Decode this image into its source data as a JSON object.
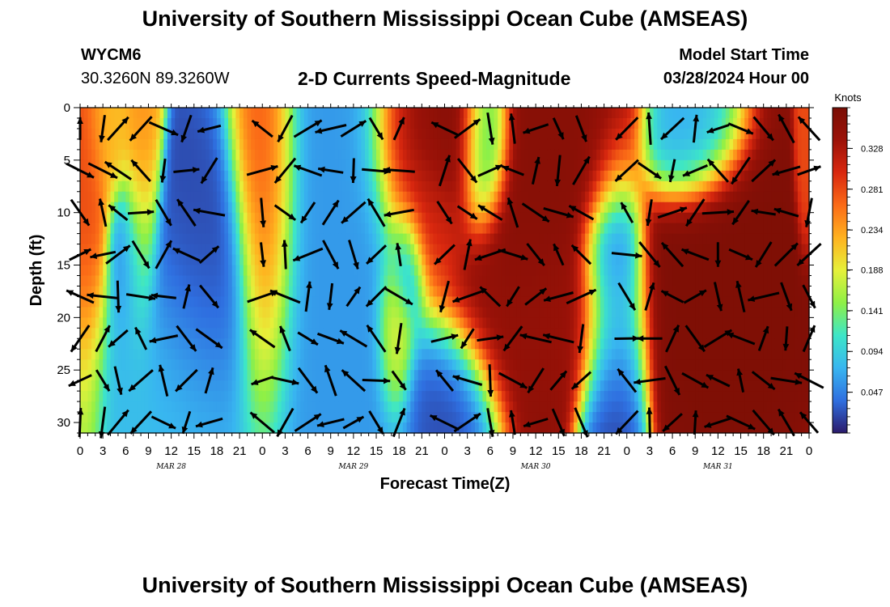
{
  "header": {
    "title": "University of Southern Mississippi Ocean Cube (AMSEAS)",
    "station": "WYCM6",
    "coords": "30.3260N  89.3260W",
    "subtitle": "2-D Currents Speed-Magnitude",
    "start_label": "Model Start Time",
    "start_value": "03/28/2024 Hour 00"
  },
  "footer": {
    "title": "University of Southern Mississippi Ocean Cube (AMSEAS)"
  },
  "colors": {
    "colormap": [
      "#2b1a6b",
      "#2f6fe0",
      "#38b6f0",
      "#3de6c8",
      "#8ef046",
      "#e6f03a",
      "#ffb21f",
      "#fb6b17",
      "#d9280f",
      "#9c1208",
      "#7a0e05"
    ],
    "arrow": "#000000"
  },
  "chart_data": {
    "type": "heatmap",
    "title": "2-D Currents Speed-Magnitude",
    "xlabel": "Forecast Time(Z)",
    "ylabel": "Depth (ft)",
    "colorbar_label": "Knots",
    "colorbar_ticks": [
      0.328,
      0.281,
      0.234,
      0.188,
      0.141,
      0.094,
      0.047
    ],
    "vmin": 0.0,
    "vmax": 0.375,
    "x_range_hours": [
      0,
      96
    ],
    "y_range_ft": [
      0,
      31
    ],
    "x_tick_labels": [
      "0",
      "3",
      "6",
      "9",
      "12",
      "15",
      "18",
      "21",
      "0",
      "3",
      "6",
      "9",
      "12",
      "15",
      "18",
      "21",
      "0",
      "3",
      "6",
      "9",
      "12",
      "15",
      "18",
      "21",
      "0",
      "3",
      "6",
      "9",
      "12",
      "15",
      "18",
      "21",
      "0"
    ],
    "y_ticks": [
      0,
      5,
      10,
      15,
      20,
      25,
      30
    ],
    "day_labels": [
      {
        "label": "MAR 28",
        "hour": 12
      },
      {
        "label": "MAR 29",
        "hour": 36
      },
      {
        "label": "MAR 30",
        "hour": 60
      },
      {
        "label": "MAR 31",
        "hour": 84
      }
    ],
    "speed_blobs": [
      {
        "hour": 1,
        "depth": 13,
        "speed": 0.28,
        "sx": 1.5,
        "sy": 9
      },
      {
        "hour": 4,
        "depth": 2,
        "speed": 0.22,
        "sx": 1.5,
        "sy": 4
      },
      {
        "hour": 8,
        "depth": 8,
        "speed": 0.24,
        "sx": 1.2,
        "sy": 7
      },
      {
        "hour": 6.5,
        "depth": 14,
        "speed": 0.05,
        "sx": 1.5,
        "sy": 4
      },
      {
        "hour": 15.5,
        "depth": 17,
        "speed": 0.02,
        "sx": 4,
        "sy": 6
      },
      {
        "hour": 10,
        "depth": 25,
        "speed": 0.08,
        "sx": 6,
        "sy": 6
      },
      {
        "hour": 24.5,
        "depth": 11,
        "speed": 0.31,
        "sx": 2,
        "sy": 9
      },
      {
        "hour": 33,
        "depth": 18,
        "speed": 0.06,
        "sx": 6,
        "sy": 12
      },
      {
        "hour": 41.5,
        "depth": 21,
        "speed": 0.22,
        "sx": 1.2,
        "sy": 4
      },
      {
        "hour": 45,
        "depth": 4,
        "speed": 0.35,
        "sx": 3,
        "sy": 5
      },
      {
        "hour": 49,
        "depth": 3,
        "speed": 0.37,
        "sx": 3,
        "sy": 4
      },
      {
        "hour": 46,
        "depth": 10,
        "speed": 0.3,
        "sx": 2.5,
        "sy": 4
      },
      {
        "hour": 53,
        "depth": 4,
        "speed": 0.04,
        "sx": 1.6,
        "sy": 4
      },
      {
        "hour": 43,
        "depth": 15,
        "speed": 0.05,
        "sx": 1.2,
        "sy": 3
      },
      {
        "hour": 49,
        "depth": 28,
        "speed": 0.02,
        "sx": 3,
        "sy": 4
      },
      {
        "hour": 58,
        "depth": 16,
        "speed": 0.36,
        "sx": 4,
        "sy": 7
      },
      {
        "hour": 60,
        "depth": 20,
        "speed": 0.34,
        "sx": 6,
        "sy": 4
      },
      {
        "hour": 65,
        "depth": 3,
        "speed": 0.36,
        "sx": 4,
        "sy": 5
      },
      {
        "hour": 70,
        "depth": 21,
        "speed": 0.02,
        "sx": 2,
        "sy": 8
      },
      {
        "hour": 85,
        "depth": 17,
        "speed": 0.37,
        "sx": 5,
        "sy": 7
      },
      {
        "hour": 80.5,
        "depth": 3,
        "speed": 0.06,
        "sx": 3,
        "sy": 3
      },
      {
        "hour": 95.5,
        "depth": 5,
        "speed": 0.28,
        "sx": 0.6,
        "sy": 4
      }
    ],
    "arrow_columns_hours": [
      0,
      3,
      5,
      8,
      11,
      14,
      17,
      24,
      27,
      30,
      33,
      36,
      39,
      42,
      48,
      51,
      54,
      57,
      60,
      63,
      66,
      72,
      75,
      78,
      81,
      84,
      87,
      90,
      93,
      96
    ],
    "arrow_rows_ft": [
      2,
      6,
      10,
      14,
      18,
      22,
      26,
      30
    ]
  }
}
